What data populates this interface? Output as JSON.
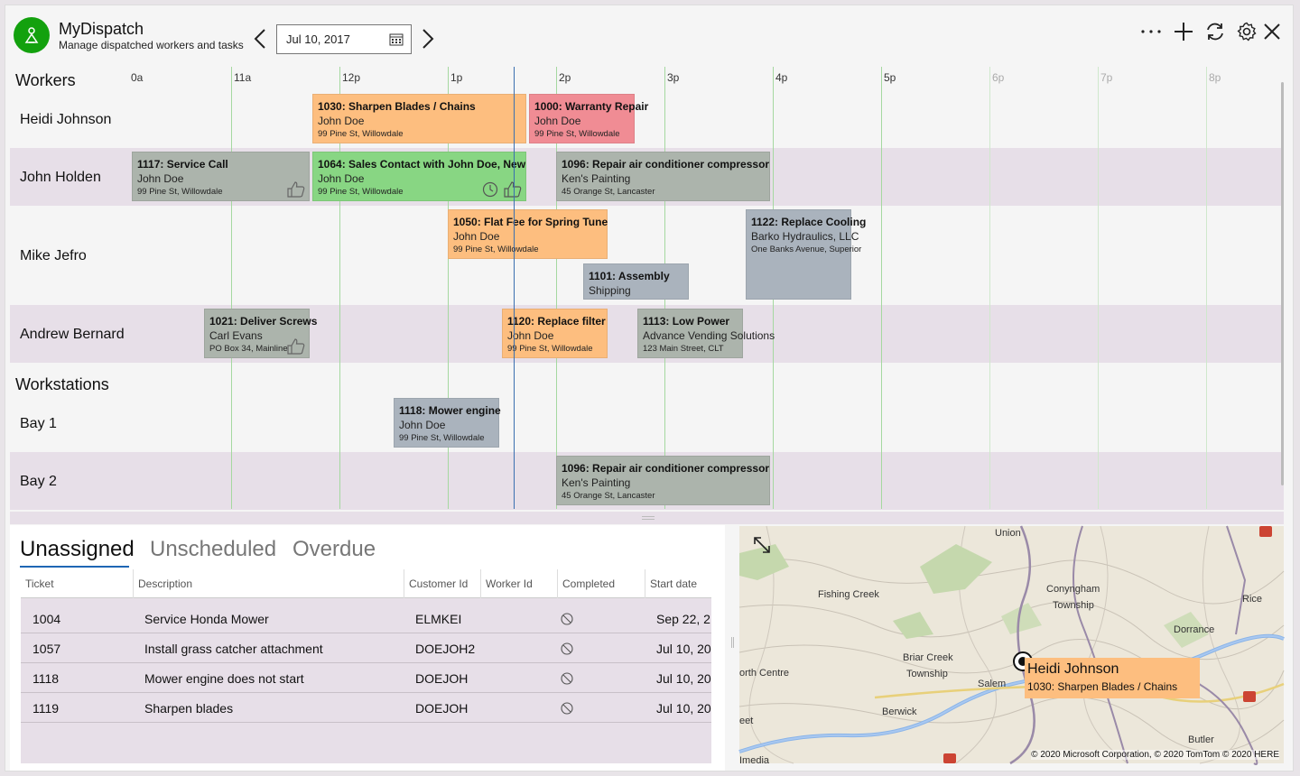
{
  "app": {
    "title": "MyDispatch",
    "subtitle": "Manage dispatched workers and tasks",
    "date": "Jul 10, 2017"
  },
  "toolbar": {
    "more_icon": "ellipsis-icon",
    "add_icon": "plus-icon",
    "refresh_icon": "refresh-icon",
    "settings_icon": "gear-icon",
    "close_icon": "close-icon"
  },
  "schedule": {
    "workers_title": "Workers",
    "workstations_title": "Workstations",
    "hours": [
      "0a",
      "11a",
      "12p",
      "1p",
      "2p",
      "3p",
      "4p",
      "5p",
      "6p",
      "7p",
      "8p"
    ],
    "rows": [
      {
        "label": "Heidi Johnson"
      },
      {
        "label": "John Holden"
      },
      {
        "label": "Mike Jefro"
      },
      {
        "label": "Andrew Bernard"
      },
      {
        "label": "Bay 1"
      },
      {
        "label": "Bay 2"
      }
    ],
    "jobs": [
      {
        "title": "1030: Sharpen Blades /  Chains",
        "customer": "John Doe",
        "address": "99 Pine St, Willowdale",
        "color": "#fdbe7f"
      },
      {
        "title": "1000: Warranty Repair",
        "customer": "John Doe",
        "address": "99 Pine St, Willowdale",
        "color": "#f08c94"
      },
      {
        "title": "1117: Service Call",
        "customer": "John Doe",
        "address": "99 Pine St, Willowdale",
        "color": "#acb4ac",
        "status": "thumbs-up"
      },
      {
        "title": "1064: Sales Contact with John Doe, New",
        "customer": "John Doe",
        "address": "99 Pine St, Willowdale",
        "color": "#88d683",
        "status": "clock-thumbs-up"
      },
      {
        "title": "1096: Repair air conditioner compressor",
        "customer": "Ken's Painting",
        "address": "45 Orange St, Lancaster",
        "color": "#acb4ac"
      },
      {
        "title": "1050: Flat Fee for Spring Tune",
        "customer": "John Doe",
        "address": "99 Pine St, Willowdale",
        "color": "#fdbe7f"
      },
      {
        "title": "1101: Assembly",
        "customer": "Shipping",
        "address": "",
        "color": "#aab3bd"
      },
      {
        "title": "1122: Replace Cooling",
        "customer": "Barko Hydraulics, LLC",
        "address": "One Banks Avenue, Superior",
        "color": "#aab3bd"
      },
      {
        "title": "1021: Deliver Screws",
        "customer": "Carl Evans",
        "address": "PO Box 34, Mainline",
        "color": "#acb4ac",
        "status": "thumbs-up"
      },
      {
        "title": "1120: Replace filter",
        "customer": "John Doe",
        "address": "99 Pine St, Willowdale",
        "color": "#fdbe7f"
      },
      {
        "title": "1113: Low Power",
        "customer": "Advance Vending Solutions",
        "address": "123 Main Street, CLT",
        "color": "#acb4ac"
      },
      {
        "title": "1118: Mower engine",
        "customer": "John Doe",
        "address": "99 Pine St, Willowdale",
        "color": "#aab3bd"
      },
      {
        "title": "1096: Repair air conditioner compressor",
        "customer": "Ken's Painting",
        "address": "45 Orange St, Lancaster",
        "color": "#acb4ac"
      }
    ]
  },
  "tabs": [
    "Unassigned",
    "Unscheduled",
    "Overdue"
  ],
  "table": {
    "headers": [
      "Ticket",
      "Description",
      "Customer Id",
      "Worker Id",
      "Completed",
      "Start date"
    ],
    "rows": [
      {
        "ticket": "1004",
        "description": "Service Honda Mower",
        "customer": "ELMKEI",
        "worker": "",
        "start": "Sep 22, 2"
      },
      {
        "ticket": "1057",
        "description": "Install grass catcher attachment",
        "customer": "DOEJOH2",
        "worker": "",
        "start": "Jul 10, 20"
      },
      {
        "ticket": "1118",
        "description": "Mower engine does not start",
        "customer": "DOEJOH",
        "worker": "",
        "start": "Jul 10, 20"
      },
      {
        "ticket": "1119",
        "description": "Sharpen blades",
        "customer": "DOEJOH",
        "worker": "",
        "start": "Jul 10, 20"
      }
    ]
  },
  "map": {
    "labels": [
      "Union",
      "Fishing Creek",
      "Conyngham",
      "Township",
      "Rice",
      "Dorrance",
      "Briar Creek",
      "Township",
      "orth Centre",
      "Salem",
      "Berwick",
      "eet",
      "Butler",
      "Imedia"
    ],
    "callout_name": "Heidi Johnson",
    "callout_job": "1030: Sharpen Blades /  Chains",
    "attribution": "© 2020 Microsoft Corporation, © 2020 TomTom © 2020 HERE"
  }
}
